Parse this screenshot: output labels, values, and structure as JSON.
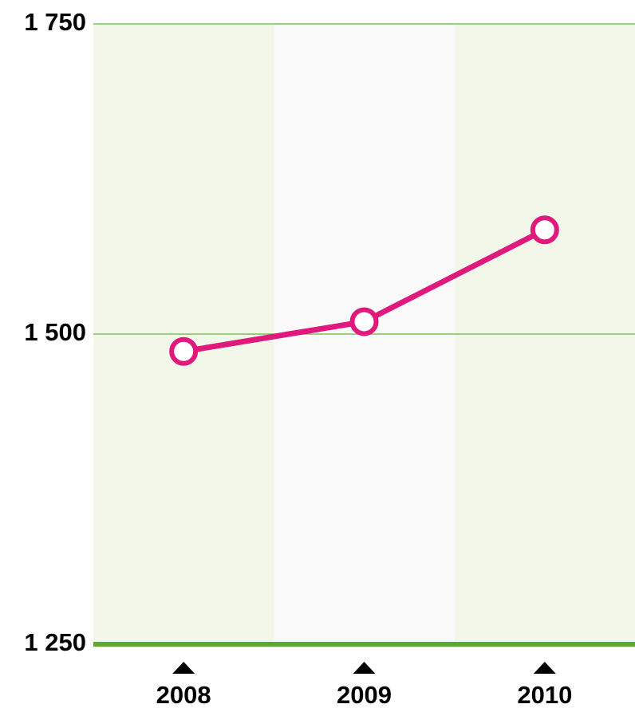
{
  "chart_data": {
    "type": "line",
    "categories": [
      "2008",
      "2009",
      "2010"
    ],
    "series": [
      {
        "color": "#e0197d",
        "values": [
          1486,
          1510,
          1584
        ]
      }
    ],
    "ylim": [
      1250,
      1750
    ],
    "yticks": [
      {
        "value": 1250,
        "label": "1 250"
      },
      {
        "value": 1500,
        "label": "1 500"
      },
      {
        "value": 1750,
        "label": "1 750"
      }
    ],
    "grid": true
  }
}
